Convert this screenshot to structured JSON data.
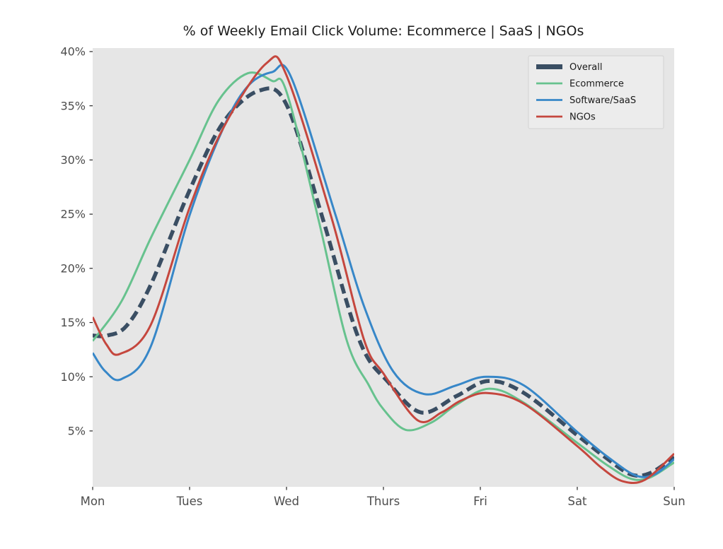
{
  "chart_data": {
    "type": "line",
    "title": "% of Weekly Email Click Volume: Ecommerce | SaaS | NGOs",
    "xlabel": "",
    "ylabel": "",
    "categories": [
      "Mon",
      "Tues",
      "Wed",
      "Thurs",
      "Fri",
      "Sat",
      "Sun"
    ],
    "y_ticks": [
      40,
      35,
      30,
      25,
      20,
      15,
      10,
      5
    ],
    "y_tick_suffix": "%",
    "ylim": [
      -0.2,
      40.3
    ],
    "grid": false,
    "legend_position": "upper-right",
    "plot_bg_color": "#e6e6e6",
    "legend_bg_color": "#ececec",
    "legend_border_color": "#d2d2d2",
    "tick_label_color": "#4d4d4d",
    "series": [
      {
        "name": "Overall",
        "color": "#3a4e63",
        "dashed": true,
        "line_width": 5.5,
        "dash_pattern": "14 7",
        "values": [
          13.8,
          27.2,
          35.1,
          10.0,
          9.4,
          4.6,
          2.6
        ],
        "samples": [
          [
            0,
            13.8
          ],
          [
            0.15,
            13.8
          ],
          [
            0.35,
            14.7
          ],
          [
            0.6,
            18.5
          ],
          [
            1.0,
            27.2
          ],
          [
            1.35,
            33.5
          ],
          [
            1.72,
            36.4
          ],
          [
            2.0,
            35.1
          ],
          [
            2.36,
            25.0
          ],
          [
            2.75,
            13.4
          ],
          [
            3.05,
            9.5
          ],
          [
            3.39,
            6.7
          ],
          [
            3.75,
            8.2
          ],
          [
            4.08,
            9.6
          ],
          [
            4.45,
            8.5
          ],
          [
            5.0,
            4.6
          ],
          [
            5.3,
            2.5
          ],
          [
            5.55,
            1.0
          ],
          [
            5.75,
            1.1
          ],
          [
            6.0,
            2.6
          ]
        ]
      },
      {
        "name": "Ecommerce",
        "color": "#67c28e",
        "dashed": false,
        "line_width": 3,
        "dash_pattern": "",
        "values": [
          13.3,
          30.0,
          36.3,
          7.0,
          8.7,
          3.9,
          2.1
        ],
        "samples": [
          [
            0,
            13.3
          ],
          [
            0.3,
            17.0
          ],
          [
            0.6,
            22.8
          ],
          [
            1.0,
            30.0
          ],
          [
            1.3,
            35.5
          ],
          [
            1.6,
            38.0
          ],
          [
            1.85,
            37.3
          ],
          [
            2.0,
            36.3
          ],
          [
            2.33,
            24.5
          ],
          [
            2.62,
            13.4
          ],
          [
            2.85,
            9.2
          ],
          [
            3.0,
            7.0
          ],
          [
            3.23,
            5.1
          ],
          [
            3.5,
            5.8
          ],
          [
            3.75,
            7.4
          ],
          [
            4.09,
            8.9
          ],
          [
            4.45,
            7.6
          ],
          [
            5.0,
            3.9
          ],
          [
            5.3,
            1.9
          ],
          [
            5.55,
            0.6
          ],
          [
            5.75,
            0.7
          ],
          [
            6.0,
            2.1
          ]
        ]
      },
      {
        "name": "Software/SaaS",
        "color": "#3787c8",
        "dashed": false,
        "line_width": 3,
        "dash_pattern": "",
        "values": [
          12.2,
          24.9,
          37.9,
          11.5,
          10.0,
          4.9,
          2.4
        ],
        "samples": [
          [
            0,
            12.2
          ],
          [
            0.13,
            10.5
          ],
          [
            0.3,
            9.8
          ],
          [
            0.6,
            12.8
          ],
          [
            1.0,
            24.9
          ],
          [
            1.35,
            33.0
          ],
          [
            1.6,
            36.8
          ],
          [
            1.85,
            38.1
          ],
          [
            2.05,
            37.6
          ],
          [
            2.51,
            24.8
          ],
          [
            2.8,
            16.5
          ],
          [
            3.1,
            10.5
          ],
          [
            3.42,
            8.4
          ],
          [
            3.75,
            9.2
          ],
          [
            4.06,
            10.0
          ],
          [
            4.45,
            9.2
          ],
          [
            5.0,
            4.9
          ],
          [
            5.3,
            2.7
          ],
          [
            5.6,
            0.9
          ],
          [
            5.8,
            1.0
          ],
          [
            6.0,
            2.4
          ]
        ]
      },
      {
        "name": "NGOs",
        "color": "#c5473e",
        "dashed": false,
        "line_width": 3,
        "dash_pattern": "",
        "values": [
          15.5,
          25.6,
          37.8,
          10.3,
          8.4,
          3.6,
          2.9
        ],
        "samples": [
          [
            0,
            15.5
          ],
          [
            0.14,
            13.0
          ],
          [
            0.28,
            12.1
          ],
          [
            0.6,
            14.8
          ],
          [
            1.0,
            25.6
          ],
          [
            1.35,
            33.0
          ],
          [
            1.79,
            38.9
          ],
          [
            2.0,
            37.8
          ],
          [
            2.47,
            24.5
          ],
          [
            2.8,
            13.4
          ],
          [
            3.0,
            10.3
          ],
          [
            3.35,
            6.0
          ],
          [
            3.6,
            6.7
          ],
          [
            3.8,
            7.8
          ],
          [
            4.07,
            8.5
          ],
          [
            4.45,
            7.5
          ],
          [
            5.0,
            3.6
          ],
          [
            5.25,
            1.6
          ],
          [
            5.47,
            0.35
          ],
          [
            5.7,
            0.5
          ],
          [
            6.0,
            2.9
          ]
        ]
      }
    ]
  }
}
